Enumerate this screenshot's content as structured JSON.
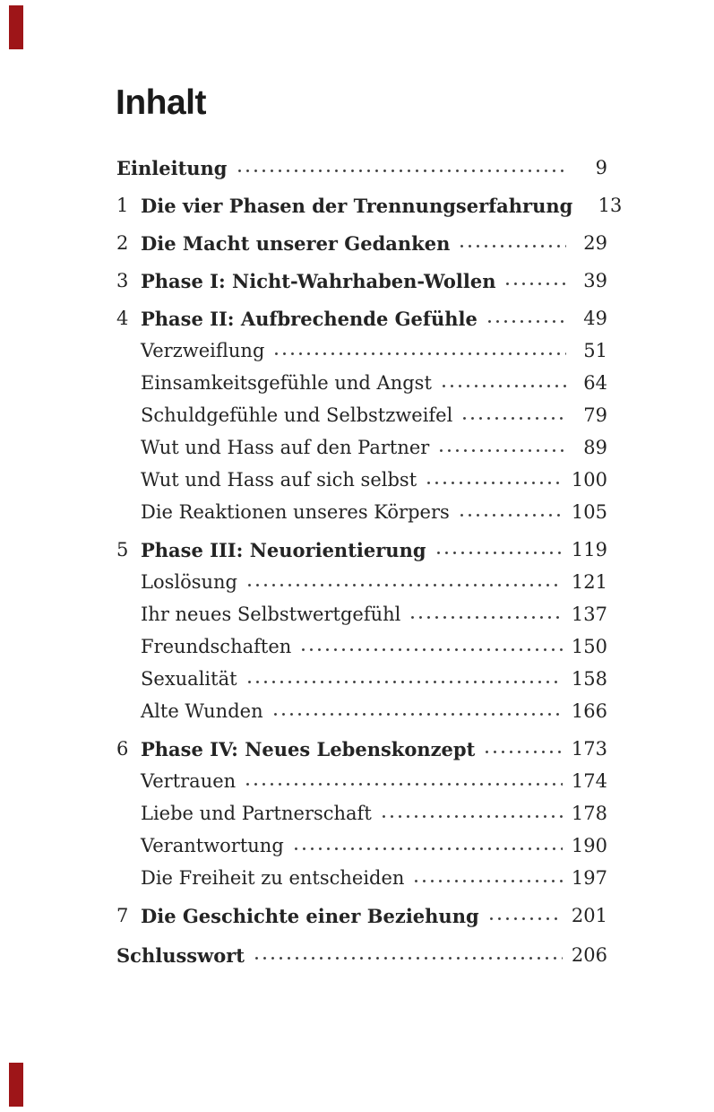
{
  "page": {
    "title": "Inhalt",
    "background_color": "#ffffff",
    "text_color": "#242424",
    "title_color": "#1b1b1b",
    "dot_leader_color": "#3e3e3e",
    "corner_mark_color": "#9e1518"
  },
  "toc": {
    "entries": [
      {
        "level": "chapter",
        "number": "",
        "label": "Einleitung",
        "page": "9"
      },
      {
        "level": "chapter",
        "number": "1",
        "label": "Die vier Phasen der Trennungserfahrung",
        "page": "13"
      },
      {
        "level": "chapter",
        "number": "2",
        "label": "Die Macht unserer Gedanken",
        "page": "29"
      },
      {
        "level": "chapter",
        "number": "3",
        "label": "Phase I: Nicht-Wahrhaben-Wollen",
        "page": "39"
      },
      {
        "level": "chapter",
        "number": "4",
        "label": "Phase II: Aufbrechende Gefühle",
        "page": "49"
      },
      {
        "level": "sub",
        "number": "",
        "label": "Verzweiflung",
        "page": "51"
      },
      {
        "level": "sub",
        "number": "",
        "label": "Einsamkeitsgefühle und Angst",
        "page": "64"
      },
      {
        "level": "sub",
        "number": "",
        "label": "Schuldgefühle und Selbstzweifel",
        "page": "79"
      },
      {
        "level": "sub",
        "number": "",
        "label": "Wut und Hass auf den Partner",
        "page": "89"
      },
      {
        "level": "sub",
        "number": "",
        "label": "Wut und Hass auf sich selbst",
        "page": "100"
      },
      {
        "level": "sub",
        "number": "",
        "label": "Die Reaktionen unseres Körpers",
        "page": "105"
      },
      {
        "level": "chapter",
        "number": "5",
        "label": "Phase III: Neuorientierung",
        "page": "119"
      },
      {
        "level": "sub",
        "number": "",
        "label": "Loslösung",
        "page": "121"
      },
      {
        "level": "sub",
        "number": "",
        "label": "Ihr neues Selbstwertgefühl",
        "page": "137"
      },
      {
        "level": "sub",
        "number": "",
        "label": "Freundschaften",
        "page": "150"
      },
      {
        "level": "sub",
        "number": "",
        "label": "Sexualität",
        "page": "158"
      },
      {
        "level": "sub",
        "number": "",
        "label": "Alte Wunden",
        "page": "166"
      },
      {
        "level": "chapter",
        "number": "6",
        "label": "Phase IV: Neues Lebenskonzept",
        "page": "173"
      },
      {
        "level": "sub",
        "number": "",
        "label": "Vertrauen",
        "page": "174"
      },
      {
        "level": "sub",
        "number": "",
        "label": "Liebe und Partnerschaft",
        "page": "178"
      },
      {
        "level": "sub",
        "number": "",
        "label": "Verantwortung",
        "page": "190"
      },
      {
        "level": "sub",
        "number": "",
        "label": "Die Freiheit zu entscheiden",
        "page": "197"
      },
      {
        "level": "chapter",
        "number": "7",
        "label": "Die Geschichte einer Beziehung",
        "page": "201"
      },
      {
        "level": "chapter",
        "number": "",
        "label": "Schlusswort",
        "page": "206"
      }
    ]
  }
}
